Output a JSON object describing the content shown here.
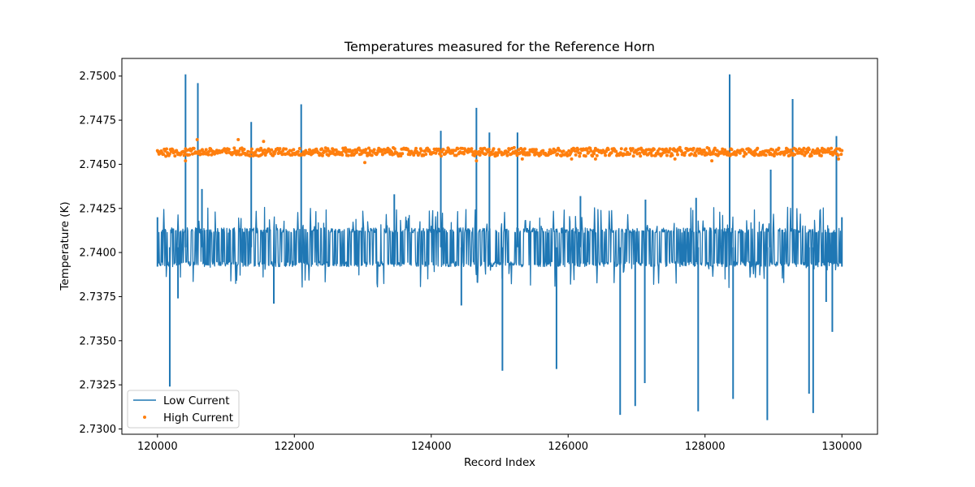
{
  "chart_data": {
    "type": "line",
    "title": "Temperatures measured for the Reference Horn",
    "xlabel": "Record Index",
    "ylabel": "Temperature (K)",
    "xlim": [
      119480,
      130520
    ],
    "ylim": [
      2.7297,
      2.751
    ],
    "xticks": [
      120000,
      122000,
      124000,
      126000,
      128000,
      130000
    ],
    "yticks": [
      2.73,
      2.7325,
      2.735,
      2.7375,
      2.74,
      2.7425,
      2.745,
      2.7475,
      2.75
    ],
    "ytick_labels": [
      "2.7300",
      "2.7325",
      "2.7350",
      "2.7375",
      "2.7400",
      "2.7425",
      "2.7450",
      "2.7475",
      "2.7500"
    ],
    "legend_position": "lower-left",
    "series": [
      {
        "name": "Low Current",
        "style": "line",
        "color": "#1f77b4",
        "x_start": 120000,
        "x_end": 130000,
        "baseline": 2.7403,
        "band_high": 2.7414,
        "band_low": 2.7392,
        "spikes_up": [
          {
            "x": 120410,
            "y": 2.7501
          },
          {
            "x": 120590,
            "y": 2.7496
          },
          {
            "x": 121370,
            "y": 2.7474
          },
          {
            "x": 122100,
            "y": 2.7484
          },
          {
            "x": 124140,
            "y": 2.7469
          },
          {
            "x": 124660,
            "y": 2.7482
          },
          {
            "x": 124850,
            "y": 2.7468
          },
          {
            "x": 125260,
            "y": 2.7468
          },
          {
            "x": 128360,
            "y": 2.7501
          },
          {
            "x": 128960,
            "y": 2.7447
          },
          {
            "x": 129280,
            "y": 2.7487
          },
          {
            "x": 129920,
            "y": 2.7466
          },
          {
            "x": 120650,
            "y": 2.7436
          },
          {
            "x": 123460,
            "y": 2.7433
          },
          {
            "x": 126180,
            "y": 2.7432
          },
          {
            "x": 127130,
            "y": 2.743
          },
          {
            "x": 127870,
            "y": 2.7431
          }
        ],
        "spikes_down": [
          {
            "x": 120180,
            "y": 2.7324
          },
          {
            "x": 125040,
            "y": 2.7333
          },
          {
            "x": 125830,
            "y": 2.7334
          },
          {
            "x": 126760,
            "y": 2.7308
          },
          {
            "x": 126980,
            "y": 2.7313
          },
          {
            "x": 127120,
            "y": 2.7326
          },
          {
            "x": 127900,
            "y": 2.731
          },
          {
            "x": 128410,
            "y": 2.7317
          },
          {
            "x": 128910,
            "y": 2.7305
          },
          {
            "x": 129520,
            "y": 2.732
          },
          {
            "x": 129580,
            "y": 2.7309
          },
          {
            "x": 129860,
            "y": 2.7355
          },
          {
            "x": 129770,
            "y": 2.7372
          },
          {
            "x": 121700,
            "y": 2.7371
          },
          {
            "x": 124440,
            "y": 2.737
          },
          {
            "x": 120300,
            "y": 2.7374
          }
        ]
      },
      {
        "name": "High Current",
        "style": "scatter",
        "color": "#ff7f0e",
        "x_start": 120000,
        "x_end": 130000,
        "baseline": 2.7457,
        "spread": 0.0003,
        "outliers": [
          {
            "x": 121180,
            "y": 2.7464
          },
          {
            "x": 120580,
            "y": 2.7464
          },
          {
            "x": 121550,
            "y": 2.7463
          },
          {
            "x": 123030,
            "y": 2.7451
          },
          {
            "x": 120410,
            "y": 2.7452
          },
          {
            "x": 124660,
            "y": 2.7452
          },
          {
            "x": 126050,
            "y": 2.7453
          },
          {
            "x": 126400,
            "y": 2.7453
          },
          {
            "x": 128100,
            "y": 2.7452
          },
          {
            "x": 129950,
            "y": 2.7453
          },
          {
            "x": 125330,
            "y": 2.7453
          },
          {
            "x": 127560,
            "y": 2.7453
          }
        ]
      }
    ]
  }
}
